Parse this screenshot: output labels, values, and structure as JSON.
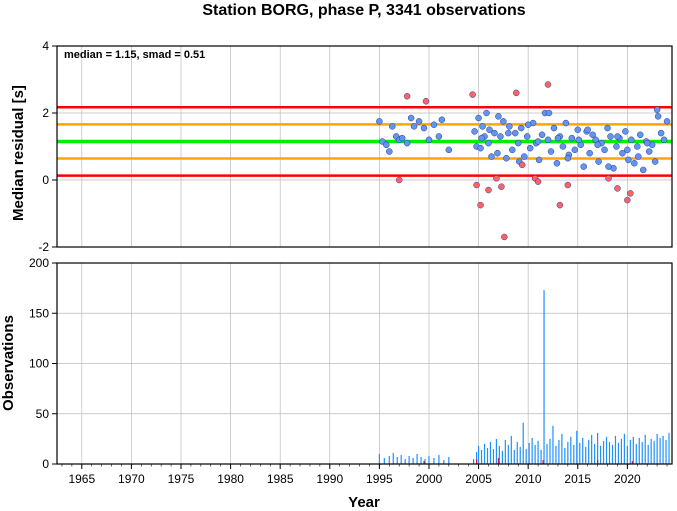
{
  "title": "Station BORG, phase P, 3341 observations",
  "chart_data": [
    {
      "type": "scatter",
      "ylabel": "Median residual [s]",
      "annotation": "median = 1.15, smad = 0.51",
      "xlim": [
        1962.5,
        2024.5
      ],
      "ylim": [
        -2,
        4
      ],
      "yticks": [
        "-2",
        "0",
        "2",
        "4"
      ],
      "grid": true,
      "reference_lines": [
        {
          "y": 1.15,
          "color": "#00ee00"
        },
        {
          "y": 1.66,
          "color": "#ffa500"
        },
        {
          "y": 0.64,
          "color": "#ffa500"
        },
        {
          "y": 2.17,
          "color": "#ff0000"
        },
        {
          "y": 0.13,
          "color": "#ff0000"
        }
      ],
      "series": [
        {
          "color": "#6495ed",
          "x": [
            1995.0,
            1995.3,
            1995.7,
            1996.0,
            1996.3,
            1996.7,
            1997.0,
            1997.3,
            1997.8,
            1998.2,
            1998.5,
            1999.0,
            1999.5,
            2000.0,
            2000.5,
            2001.0,
            2001.3,
            2002.0,
            2004.6,
            2004.8,
            2005.0,
            2005.2,
            2005.4,
            2005.6,
            2005.8,
            2006.0,
            2006.3,
            2006.6,
            2006.9,
            2007.2,
            2007.5,
            2007.8,
            2008.1,
            2008.4,
            2008.7,
            2009.0,
            2009.3,
            2009.6,
            2009.9,
            2010.2,
            2010.5,
            2010.8,
            2011.1,
            2011.4,
            2011.7,
            2012.0,
            2012.3,
            2012.6,
            2012.9,
            2013.2,
            2013.5,
            2013.8,
            2014.1,
            2014.4,
            2014.7,
            2015.0,
            2015.3,
            2015.6,
            2015.9,
            2016.2,
            2016.5,
            2016.8,
            2017.1,
            2017.4,
            2017.7,
            2018.0,
            2018.3,
            2018.6,
            2018.9,
            2019.2,
            2019.5,
            2019.8,
            2020.1,
            2020.4,
            2020.7,
            2021.0,
            2021.3,
            2021.6,
            2021.9,
            2022.2,
            2022.5,
            2022.8,
            2023.1,
            2023.4,
            2023.7,
            2024.0,
            2005.3,
            2006.1,
            2007.0,
            2008.0,
            2009.1,
            2010.0,
            2011.0,
            2012.1,
            2013.0,
            2014.0,
            2015.1,
            2016.0,
            2017.0,
            2018.1,
            2019.0,
            2020.0,
            2021.1,
            2022.0,
            2023.0
          ],
          "y": [
            1.75,
            1.15,
            1.05,
            0.85,
            1.6,
            1.3,
            1.2,
            1.25,
            1.1,
            1.85,
            1.6,
            1.75,
            1.55,
            1.2,
            1.65,
            1.3,
            1.8,
            0.9,
            1.45,
            1.0,
            1.85,
            0.95,
            1.6,
            1.3,
            2.0,
            1.1,
            0.7,
            1.4,
            0.8,
            1.3,
            1.75,
            0.65,
            1.6,
            0.9,
            1.4,
            1.1,
            1.55,
            0.7,
            1.3,
            0.95,
            1.7,
            1.1,
            0.6,
            1.35,
            2.0,
            1.2,
            0.85,
            1.55,
            0.5,
            1.3,
            1.0,
            1.7,
            0.75,
            1.25,
            0.9,
            1.5,
            1.05,
            0.4,
            1.45,
            0.8,
            1.35,
            1.2,
            0.55,
            1.1,
            0.9,
            1.55,
            1.3,
            0.35,
            1.0,
            1.25,
            0.8,
            1.45,
            0.6,
            1.2,
            0.5,
            1.0,
            1.35,
            0.3,
            1.15,
            0.85,
            1.05,
            0.55,
            1.9,
            1.4,
            1.2,
            1.75,
            1.25,
            1.5,
            1.9,
            1.4,
            0.55,
            1.65,
            1.15,
            2.0,
            1.25,
            0.65,
            1.2,
            1.5,
            1.05,
            0.4,
            1.3,
            0.9,
            0.7,
            1.1,
            2.1
          ]
        },
        {
          "color": "#ff6464",
          "x": [
            1997.0,
            1997.8,
            1999.7,
            2004.4,
            2004.8,
            2005.2,
            2006.0,
            2006.8,
            2007.3,
            2007.6,
            2008.8,
            2009.4,
            2010.7,
            2011.0,
            2012.0,
            2013.2,
            2014.0,
            2018.1,
            2019.0,
            2020.0,
            2020.3
          ],
          "y": [
            0.0,
            2.5,
            2.35,
            2.55,
            -0.15,
            -0.75,
            -0.3,
            0.05,
            -0.2,
            -1.7,
            2.6,
            0.45,
            0.05,
            -0.05,
            2.85,
            -0.75,
            -0.15,
            0.05,
            -0.25,
            -0.6,
            -0.4
          ]
        }
      ]
    },
    {
      "type": "bar",
      "xlabel": "Year",
      "ylabel": "Observations",
      "xlim": [
        1962.5,
        2024.5
      ],
      "ylim": [
        0,
        200
      ],
      "yticks": [
        "0",
        "50",
        "100",
        "150",
        "200"
      ],
      "xticks": [
        "1965",
        "1970",
        "1975",
        "1980",
        "1985",
        "1990",
        "1995",
        "2000",
        "2005",
        "2010",
        "2015",
        "2020"
      ],
      "grid": true,
      "series": [
        {
          "color": "#1e90ff",
          "x": [
            1995.0,
            1995.5,
            1996.0,
            1996.4,
            1996.8,
            1997.2,
            1997.6,
            1998.0,
            1998.4,
            1998.8,
            1999.2,
            1999.6,
            2000.0,
            2000.5,
            2001.0,
            2001.5,
            2002.0,
            2004.5,
            2004.8,
            2005.0,
            2005.3,
            2005.6,
            2005.9,
            2006.2,
            2006.5,
            2006.8,
            2007.1,
            2007.4,
            2007.7,
            2008.0,
            2008.3,
            2008.6,
            2008.9,
            2009.2,
            2009.5,
            2009.8,
            2010.1,
            2010.4,
            2010.7,
            2011.0,
            2011.3,
            2011.6,
            2011.9,
            2012.2,
            2012.5,
            2012.8,
            2013.1,
            2013.4,
            2013.7,
            2014.0,
            2014.3,
            2014.6,
            2014.9,
            2015.2,
            2015.5,
            2015.8,
            2016.1,
            2016.4,
            2016.7,
            2017.0,
            2017.3,
            2017.6,
            2017.9,
            2018.2,
            2018.5,
            2018.8,
            2019.1,
            2019.4,
            2019.7,
            2020.0,
            2020.3,
            2020.6,
            2020.9,
            2021.2,
            2021.5,
            2021.8,
            2022.1,
            2022.4,
            2022.7,
            2023.0,
            2023.3,
            2023.6,
            2023.9,
            2024.2
          ],
          "values": [
            10,
            6,
            8,
            11,
            7,
            9,
            5,
            8,
            6,
            10,
            7,
            5,
            8,
            6,
            9,
            4,
            7,
            5,
            12,
            18,
            14,
            20,
            16,
            22,
            15,
            25,
            18,
            13,
            24,
            19,
            28,
            14,
            22,
            17,
            41,
            15,
            21,
            26,
            19,
            23,
            14,
            173,
            20,
            25,
            38,
            18,
            24,
            30,
            16,
            22,
            27,
            19,
            33,
            21,
            26,
            17,
            24,
            29,
            20,
            31,
            18,
            23,
            27,
            22,
            19,
            28,
            21,
            25,
            30,
            18,
            24,
            27,
            20,
            26,
            22,
            29,
            19,
            25,
            23,
            30,
            26,
            28,
            24,
            31
          ]
        },
        {
          "color": "#dc143c",
          "x": [
            1999.5,
            2004.8,
            2007.0,
            2011.5,
            2017.0,
            2020.5
          ],
          "values": [
            3,
            5,
            6,
            4,
            4,
            3
          ]
        }
      ]
    }
  ]
}
